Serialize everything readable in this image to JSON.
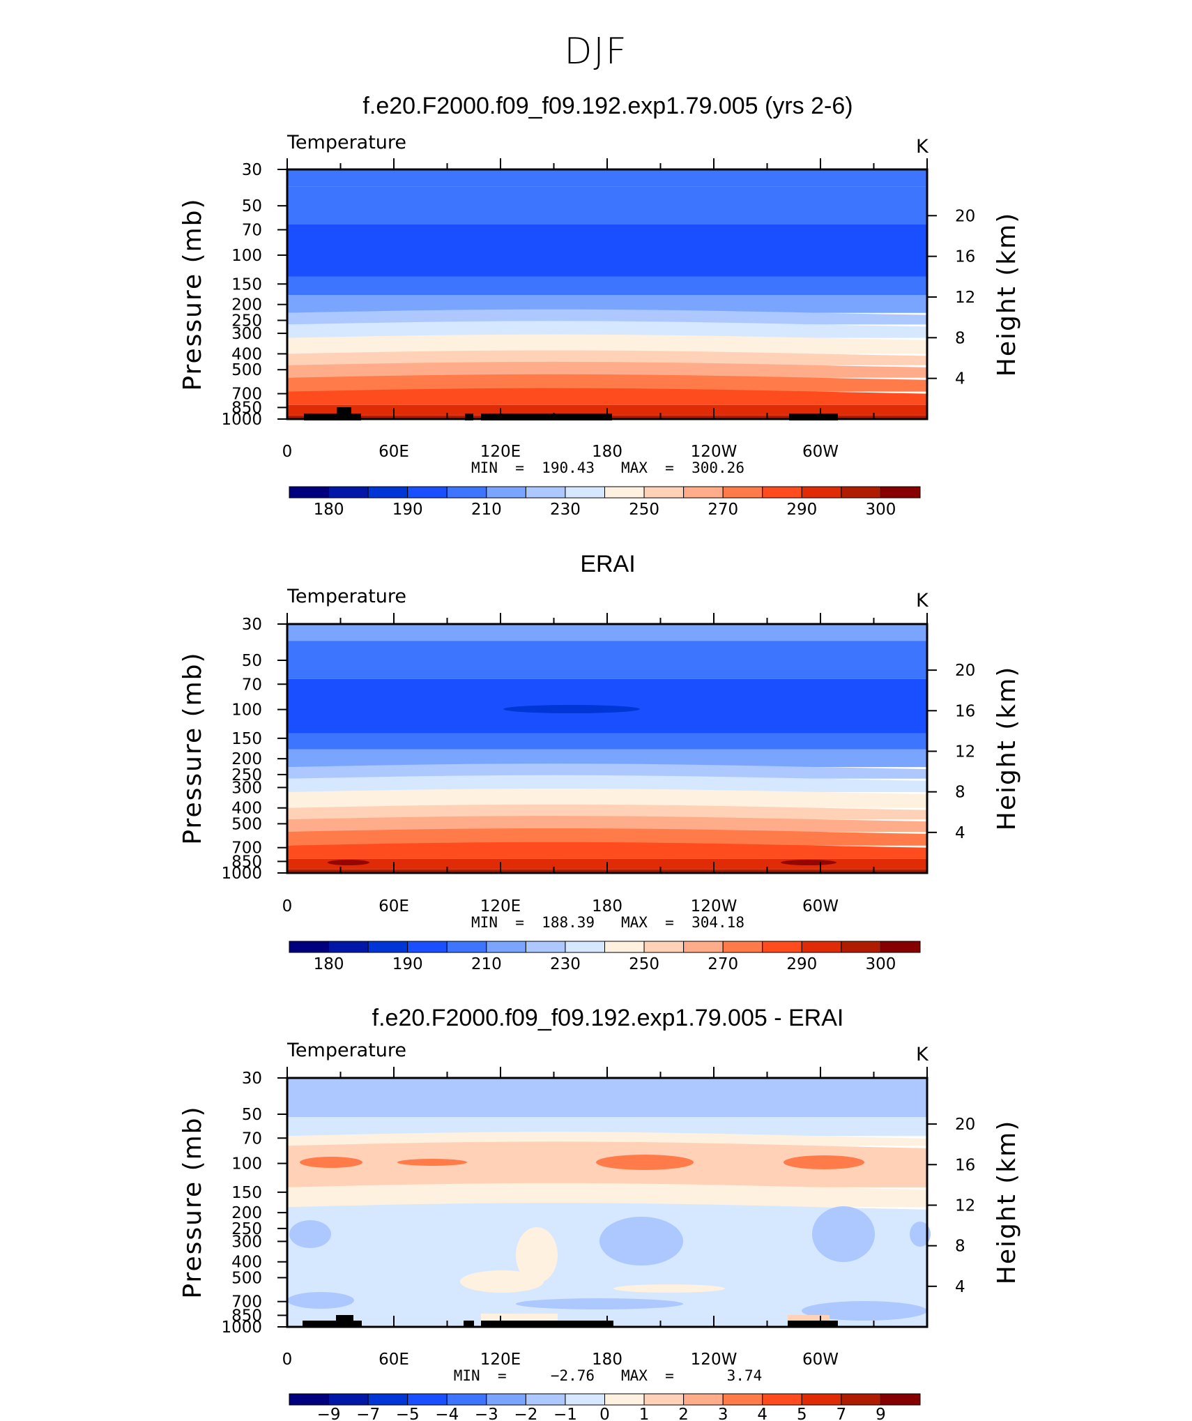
{
  "figure": {
    "title": "DJF"
  },
  "panels": [
    {
      "title": "f.e20.F2000.f09_f09.192.exp1.79.005 (yrs 2-6)",
      "left_label": "Temperature",
      "units": "K",
      "y_axis_title": "Pressure (mb)",
      "y2_axis_title": "Height (km)",
      "min_max": "MIN  =  190.43   MAX  =  300.26"
    },
    {
      "title": "ERAI",
      "left_label": "Temperature",
      "units": "K",
      "y_axis_title": "Pressure (mb)",
      "y2_axis_title": "Height (km)",
      "min_max": "MIN  =  188.39   MAX  =  304.18"
    },
    {
      "title": "f.e20.F2000.f09_f09.192.exp1.79.005 - ERAI",
      "left_label": "Temperature",
      "units": "K",
      "y_axis_title": "Pressure (mb)",
      "y2_axis_title": "Height (km)",
      "min_max": "MIN  =     −2.76   MAX  =      3.74"
    }
  ],
  "chart_data": [
    {
      "type": "heatmap",
      "title": "f.e20.F2000.f09_f09.192.exp1.79.005 (yrs 2-6)",
      "xlabel": "",
      "ylabel": "Pressure (mb)",
      "y2label": "Height (km)",
      "x_ticks": [
        "0",
        "60E",
        "120E",
        "180",
        "120W",
        "60W"
      ],
      "x_tick_values": [
        0,
        60,
        120,
        180,
        240,
        300
      ],
      "xlim": [
        0,
        360
      ],
      "y_ticks": [
        "30",
        "50",
        "70",
        "100",
        "150",
        "200",
        "250",
        "300",
        "400",
        "500",
        "700",
        "850",
        "1000"
      ],
      "y_tick_values": [
        30,
        50,
        70,
        100,
        150,
        200,
        250,
        300,
        400,
        500,
        700,
        850,
        1000
      ],
      "ylim": [
        1000,
        30
      ],
      "y_scale": "log",
      "y2_ticks": [
        "4",
        "8",
        "12",
        "16",
        "20"
      ],
      "y2_tick_values": [
        4,
        8,
        12,
        16,
        20
      ],
      "colorbar_labels": [
        "180",
        "190",
        "210",
        "230",
        "250",
        "270",
        "290",
        "300"
      ],
      "colorbar_colors": [
        "#00007f",
        "#0017a8",
        "#0035d6",
        "#1a4fff",
        "#3d75ff",
        "#7aa5ff",
        "#adc8ff",
        "#d6e8ff",
        "#fff1e0",
        "#ffd2b8",
        "#ffac8a",
        "#ff7b4a",
        "#ff4c1e",
        "#e02c06",
        "#b01c00",
        "#860000"
      ],
      "bands": [
        {
          "p_top": 30,
          "p_bottom": 38,
          "value": 213
        },
        {
          "p_top": 38,
          "p_bottom": 65,
          "value": 208
        },
        {
          "p_top": 65,
          "p_bottom": 135,
          "value": 202
        },
        {
          "p_top": 135,
          "p_bottom": 175,
          "value": 211
        },
        {
          "p_top": 175,
          "p_bottom": 225,
          "value": 218
        },
        {
          "p_top": 225,
          "p_bottom": 265,
          "value": 226
        },
        {
          "p_top": 265,
          "p_bottom": 320,
          "value": 236
        },
        {
          "p_top": 320,
          "p_bottom": 400,
          "value": 246
        },
        {
          "p_top": 400,
          "p_bottom": 470,
          "value": 256
        },
        {
          "p_top": 470,
          "p_bottom": 560,
          "value": 264
        },
        {
          "p_top": 560,
          "p_bottom": 680,
          "value": 272
        },
        {
          "p_top": 680,
          "p_bottom": 820,
          "value": 280
        },
        {
          "p_top": 820,
          "p_bottom": 950,
          "value": 288
        },
        {
          "p_top": 950,
          "p_bottom": 1000,
          "value": 295
        }
      ],
      "min": 190.43,
      "max": 300.26
    },
    {
      "type": "heatmap",
      "title": "ERAI",
      "xlabel": "",
      "ylabel": "Pressure (mb)",
      "y2label": "Height (km)",
      "x_ticks": [
        "0",
        "60E",
        "120E",
        "180",
        "120W",
        "60W"
      ],
      "x_tick_values": [
        0,
        60,
        120,
        180,
        240,
        300
      ],
      "xlim": [
        0,
        360
      ],
      "y_ticks": [
        "30",
        "50",
        "70",
        "100",
        "150",
        "200",
        "250",
        "300",
        "400",
        "500",
        "700",
        "850",
        "1000"
      ],
      "y_tick_values": [
        30,
        50,
        70,
        100,
        150,
        200,
        250,
        300,
        400,
        500,
        700,
        850,
        1000
      ],
      "ylim": [
        1000,
        30
      ],
      "y_scale": "log",
      "y2_ticks": [
        "4",
        "8",
        "12",
        "16",
        "20"
      ],
      "y2_tick_values": [
        4,
        8,
        12,
        16,
        20
      ],
      "colorbar_labels": [
        "180",
        "190",
        "210",
        "230",
        "250",
        "270",
        "290",
        "300"
      ],
      "colorbar_colors": [
        "#00007f",
        "#0017a8",
        "#0035d6",
        "#1a4fff",
        "#3d75ff",
        "#7aa5ff",
        "#adc8ff",
        "#d6e8ff",
        "#fff1e0",
        "#ffd2b8",
        "#ffac8a",
        "#ff7b4a",
        "#ff4c1e",
        "#e02c06",
        "#b01c00",
        "#860000"
      ],
      "bands": [
        {
          "p_top": 30,
          "p_bottom": 38,
          "value": 215
        },
        {
          "p_top": 38,
          "p_bottom": 65,
          "value": 207
        },
        {
          "p_top": 65,
          "p_bottom": 140,
          "value": 201
        },
        {
          "p_top": 140,
          "p_bottom": 175,
          "value": 211
        },
        {
          "p_top": 175,
          "p_bottom": 225,
          "value": 218
        },
        {
          "p_top": 225,
          "p_bottom": 265,
          "value": 226
        },
        {
          "p_top": 265,
          "p_bottom": 320,
          "value": 236
        },
        {
          "p_top": 320,
          "p_bottom": 400,
          "value": 246
        },
        {
          "p_top": 400,
          "p_bottom": 470,
          "value": 256
        },
        {
          "p_top": 470,
          "p_bottom": 560,
          "value": 264
        },
        {
          "p_top": 560,
          "p_bottom": 680,
          "value": 273
        },
        {
          "p_top": 680,
          "p_bottom": 820,
          "value": 281
        },
        {
          "p_top": 820,
          "p_bottom": 950,
          "value": 290
        },
        {
          "p_top": 950,
          "p_bottom": 1000,
          "value": 298
        }
      ],
      "min": 188.39,
      "max": 304.18
    },
    {
      "type": "heatmap",
      "title": "f.e20.F2000.f09_f09.192.exp1.79.005 - ERAI",
      "xlabel": "",
      "ylabel": "Pressure (mb)",
      "y2label": "Height (km)",
      "x_ticks": [
        "0",
        "60E",
        "120E",
        "180",
        "120W",
        "60W"
      ],
      "x_tick_values": [
        0,
        60,
        120,
        180,
        240,
        300
      ],
      "xlim": [
        0,
        360
      ],
      "y_ticks": [
        "30",
        "50",
        "70",
        "100",
        "150",
        "200",
        "250",
        "300",
        "400",
        "500",
        "700",
        "850",
        "1000"
      ],
      "y_tick_values": [
        30,
        50,
        70,
        100,
        150,
        200,
        250,
        300,
        400,
        500,
        700,
        850,
        1000
      ],
      "ylim": [
        1000,
        30
      ],
      "y_scale": "log",
      "y2_ticks": [
        "4",
        "8",
        "12",
        "16",
        "20"
      ],
      "y2_tick_values": [
        4,
        8,
        12,
        16,
        20
      ],
      "colorbar_labels": [
        "−9",
        "−7",
        "−5",
        "−4",
        "−3",
        "−2",
        "−1",
        "0",
        "1",
        "2",
        "3",
        "4",
        "5",
        "7",
        "9"
      ],
      "colorbar_colors": [
        "#00007f",
        "#0017a8",
        "#0035d6",
        "#1a4fff",
        "#3d75ff",
        "#7aa5ff",
        "#adc8ff",
        "#d6e8ff",
        "#fff1e0",
        "#ffd2b8",
        "#ffac8a",
        "#ff7b4a",
        "#ff4c1e",
        "#e02c06",
        "#b01c00",
        "#860000"
      ],
      "bands": [
        {
          "p_top": 30,
          "p_bottom": 52,
          "value": -1.5
        },
        {
          "p_top": 52,
          "p_bottom": 68,
          "value": -0.5
        },
        {
          "p_top": 68,
          "p_bottom": 78,
          "value": 0.5
        },
        {
          "p_top": 78,
          "p_bottom": 140,
          "value": 1.5
        },
        {
          "p_top": 140,
          "p_bottom": 185,
          "value": 0.5
        },
        {
          "p_top": 185,
          "p_bottom": 1000,
          "value": -0.5
        }
      ],
      "min": -2.76,
      "max": 3.74
    }
  ]
}
